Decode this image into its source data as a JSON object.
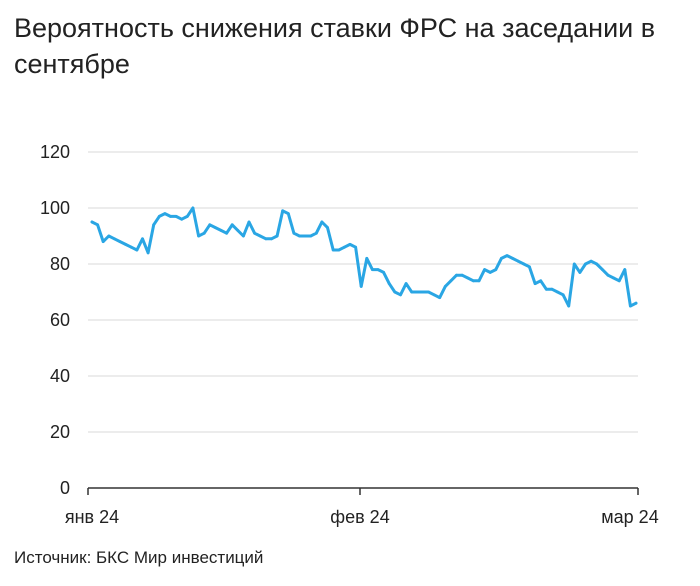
{
  "title": "Вероятность снижения ставки ФРС на заседании в сентябре",
  "source": "Источник: БКС Мир инвестиций",
  "colors": {
    "line": "#2aa6e4",
    "grid": "#d9d9d9",
    "axis": "#333333",
    "text": "#222222"
  },
  "chart_data": {
    "type": "line",
    "title": "Вероятность снижения ставки ФРС на заседании в сентябре",
    "xlabel": "",
    "ylabel": "",
    "ylim": [
      0,
      120
    ],
    "yticks": [
      0,
      20,
      40,
      60,
      80,
      100,
      120
    ],
    "xticks": [
      "янв 24",
      "фев 24",
      "мар 24"
    ],
    "grid": true,
    "series": [
      {
        "values": [
          95,
          94,
          88,
          90,
          89,
          88,
          87,
          86,
          85,
          89,
          84,
          94,
          97,
          98,
          97,
          97,
          96,
          97,
          100,
          90,
          91,
          94,
          93,
          92,
          91,
          94,
          92,
          90,
          95,
          91,
          90,
          89,
          89,
          90,
          99,
          98,
          91,
          90,
          90,
          90,
          91,
          95,
          93,
          85,
          85,
          86,
          87,
          86,
          72,
          82,
          78,
          78,
          77,
          73,
          70,
          69,
          73,
          70,
          70,
          70,
          70,
          69,
          68,
          72,
          74,
          76,
          76,
          75,
          74,
          74,
          78,
          77,
          78,
          82,
          83,
          82,
          81,
          80,
          79,
          73,
          74,
          71,
          71,
          70,
          69,
          65,
          80,
          77,
          80,
          81,
          80,
          78,
          76,
          75,
          74,
          78,
          65,
          66
        ]
      }
    ]
  }
}
